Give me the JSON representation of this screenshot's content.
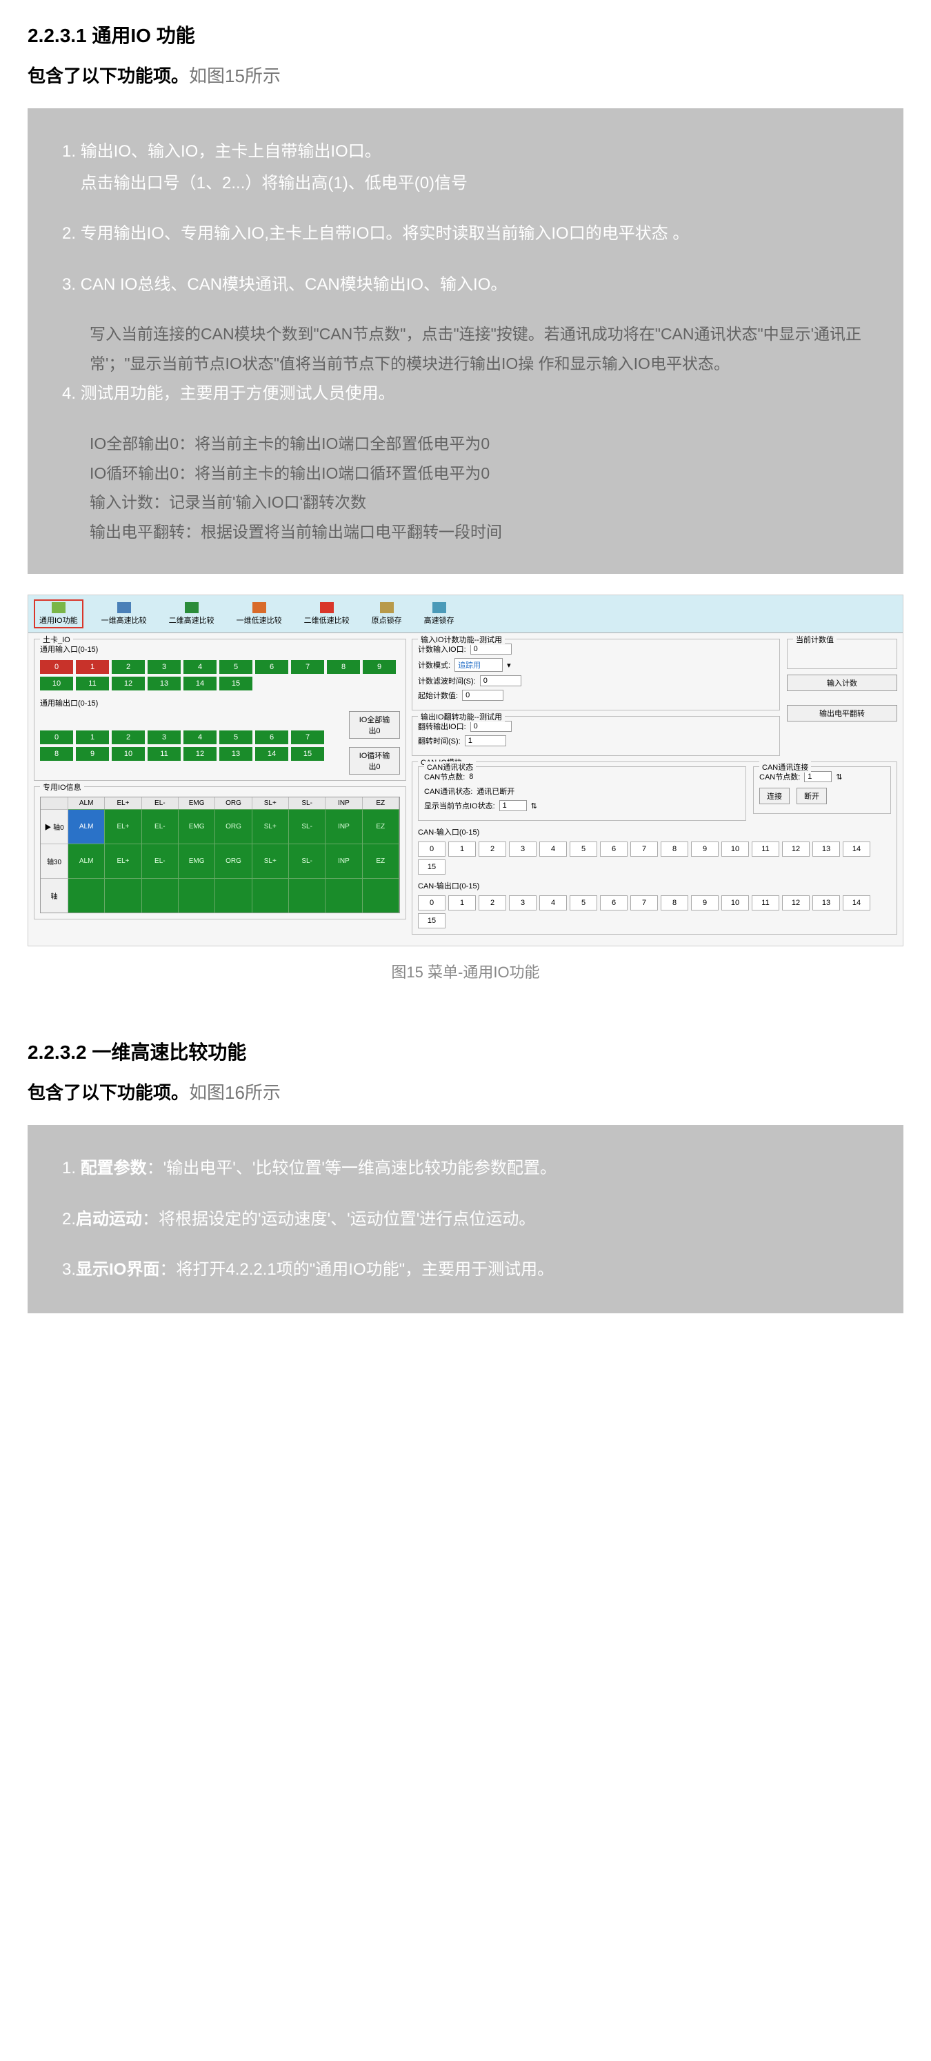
{
  "section1": {
    "heading": "2.2.3.1  通用IO 功能",
    "subhead_bold": "包含了以下功能项。",
    "subhead_light": "如图15所示",
    "items": [
      {
        "num": "1.",
        "text": "输出IO、输入IO，主卡上自带输出IO口。\n点击输出口号（1、2...）将输出高(1)、低电平(0)信号"
      },
      {
        "num": "2.",
        "text": "专用输出IO、专用输入IO,主卡上自带IO口。将实时读取当前输入IO口的电平状态 。"
      },
      {
        "num": "3.",
        "text": "CAN IO总线、CAN模块通讯、CAN模块输出IO、输入IO。",
        "sub": "写入当前连接的CAN模块个数到\"CAN节点数\"，点击\"连接\"按键。若通讯成功将在\"CAN通讯状态\"中显示'通讯正常'；\"显示当前节点IO状态\"值将当前节点下的模块进行输出IO操  作和显示输入IO电平状态。"
      },
      {
        "num": "4.",
        "text": "测试用功能，主要用于方便测试人员使用。",
        "sub": "IO全部输出0：将当前主卡的输出IO端口全部置低电平为0\nIO循环输出0：将当前主卡的输出IO端口循环置低电平为0\n输入计数：记录当前'输入IO口'翻转次数\n输出电平翻转：根据设置将当前输出端口电平翻转一段时间"
      }
    ],
    "caption": "图15  菜单-通用IO功能"
  },
  "screenshot": {
    "tabs": [
      "通用IO功能",
      "一维高速比较",
      "二维高速比较",
      "一维低速比较",
      "二维低速比较",
      "原点锁存",
      "高速锁存"
    ],
    "card_title": "土卡_IO",
    "input_title": "通用输入口(0-15)",
    "output_title": "通用输出口(0-15)",
    "io_nums": [
      "0",
      "1",
      "2",
      "3",
      "4",
      "5",
      "6",
      "7",
      "8",
      "9",
      "10",
      "11",
      "12",
      "13",
      "14",
      "15"
    ],
    "btn_all0": "IO全部输出0",
    "btn_loop0": "IO循环输出0",
    "special_title": "专用IO信息",
    "cols": [
      "ALM",
      "EL+",
      "EL-",
      "EMG",
      "ORG",
      "SL+",
      "SL-",
      "INP",
      "EZ"
    ],
    "axis0": "▶  轴0",
    "axis30": "轴30",
    "axis_blank": "轴",
    "row0": [
      "ALM",
      "EL+",
      "EL-",
      "EMG",
      "ORG",
      "SL+",
      "SL-",
      "INP",
      "EZ"
    ],
    "row1": [
      "ALM",
      "EL+",
      "EL-",
      "EMG",
      "ORG",
      "SL+",
      "SL-",
      "INP",
      "EZ"
    ],
    "count_title": "输入IO计数功能--测试用",
    "count_io_label": "计数输入IO口:",
    "count_io_val": "0",
    "count_mode_label": "计数模式:",
    "count_mode_val": "追踪用",
    "count_filter_label": "计数滤波时间(S):",
    "count_filter_val": "0",
    "count_start_label": "起始计数值:",
    "count_start_val": "0",
    "cur_count_label": "当前计数值",
    "btn_inp_count": "输入计数",
    "flip_title": "输出IO翻转功能--测试用",
    "flip_out_label": "翻转输出IO口:",
    "flip_out_val": "0",
    "flip_time_label": "翻转时间(S):",
    "flip_time_val": "1",
    "btn_flip": "输出电平翻转",
    "can_module_title": "CAN IO模块",
    "can_state_title": "CAN通讯状态",
    "can_node_label": "CAN节点数:",
    "can_node_val": "8",
    "can_comm_label": "CAN通讯状态:",
    "can_comm_val": "通讯已断开",
    "can_show_label": "显示当前节点IO状态:",
    "can_show_val": "1",
    "can_conn_title": "CAN通讯连接",
    "can_conn_node_label": "CAN节点数:",
    "can_conn_node_val": "1",
    "btn_connect": "连接",
    "btn_disconnect": "断开",
    "can_in_title": "CAN-输入口(0-15)",
    "can_out_title": "CAN-输出口(0-15)",
    "can_nums": [
      "0",
      "1",
      "2",
      "3",
      "4",
      "5",
      "6",
      "7",
      "8",
      "9",
      "10",
      "11",
      "12",
      "13",
      "14",
      "15"
    ]
  },
  "section2": {
    "heading": "2.2.3.2 一维高速比较功能",
    "subhead_bold": "包含了以下功能项。",
    "subhead_light": "如图16所示",
    "items": [
      {
        "num": "1. ",
        "bold": "配置参数",
        "text": "：'输出电平'、'比较位置'等一维高速比较功能参数配置。"
      },
      {
        "num": "2.",
        "bold": "启动运动",
        "text": "：将根据设定的'运动速度'、'运动位置'进行点位运动。"
      },
      {
        "num": "3.",
        "bold": "显示IO界面",
        "text": "：将打开4.2.2.1项的\"通用IO功能\"，主要用于测试用。"
      }
    ]
  }
}
